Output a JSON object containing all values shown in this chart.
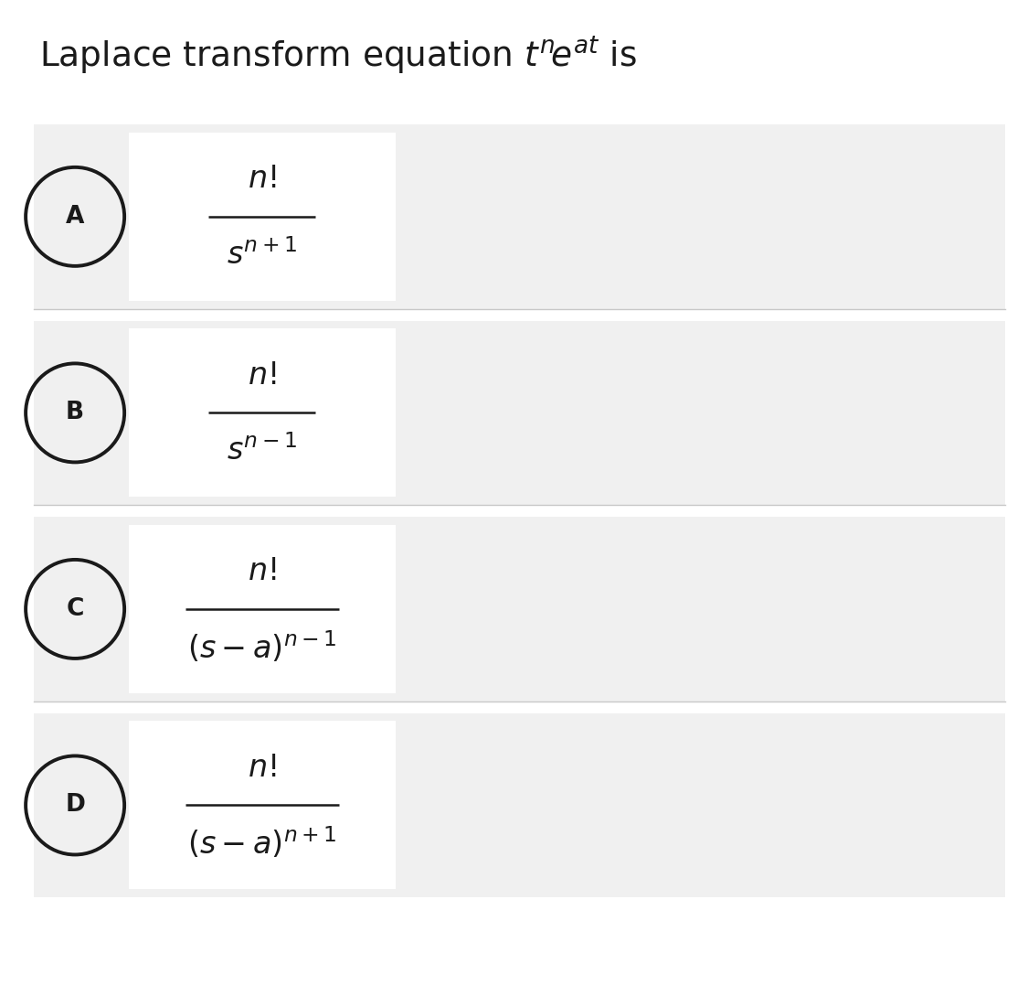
{
  "background_color": "#f0f0f0",
  "box_color": "#ffffff",
  "page_background": "#ffffff",
  "text_color": "#1a1a1a",
  "options": [
    {
      "label": "A",
      "formula_num": "$n!$",
      "formula_den": "$s^{n+1}$",
      "den_has_a": false
    },
    {
      "label": "B",
      "formula_num": "$n!$",
      "formula_den": "$s^{n-1}$",
      "den_has_a": false
    },
    {
      "label": "C",
      "formula_num": "$n!$",
      "formula_den": "$(s-a)^{n-1}$",
      "den_has_a": true
    },
    {
      "label": "D",
      "formula_num": "$n!$",
      "formula_den": "$(s-a)^{n+1}$",
      "den_has_a": true
    }
  ],
  "fig_width": 11.25,
  "fig_height": 10.89,
  "dpi": 100
}
